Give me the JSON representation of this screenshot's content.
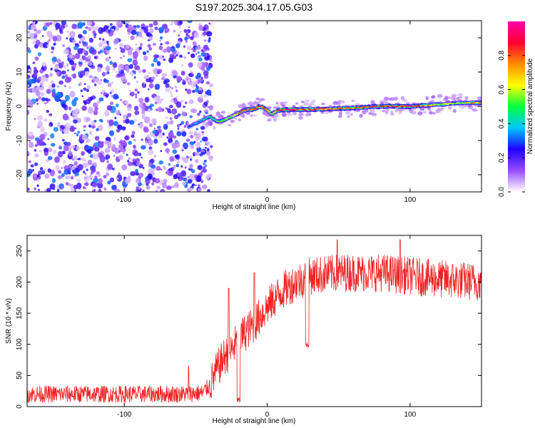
{
  "title": "S197.2025.304.17.05.G03",
  "chart_data": [
    {
      "type": "heatmap",
      "xlabel": "Height of straight line (km)",
      "ylabel": "Frequency (Hz)",
      "xlim": [
        -168,
        150
      ],
      "ylim": [
        -25,
        25
      ],
      "xticks": [
        -100,
        0,
        100
      ],
      "xtick_labels": [
        "-100",
        "0",
        "100"
      ],
      "yticks": [
        -20,
        -10,
        0,
        10,
        20
      ],
      "ytick_labels": [
        "-20",
        "-10",
        "0",
        "10",
        "20"
      ],
      "colorbar": {
        "label": "Normalized spectral amplitude",
        "range": [
          0,
          1
        ],
        "ticks": [
          0,
          0.2,
          0.4,
          0.6,
          0.8
        ],
        "tick_labels": [
          "0.0",
          "0.2",
          "0.4",
          "0.6",
          "0.8"
        ],
        "colors": [
          "#ffffff",
          "#9a4dff",
          "#1f00ff",
          "#00c8ff",
          "#00ff40",
          "#ffff00",
          "#ff8c00",
          "#ff0033",
          "#ff00aa"
        ]
      },
      "noise_region_x": [
        -168,
        -45
      ],
      "ridge": {
        "x": [
          -55,
          -50,
          -45,
          -40,
          -35,
          -30,
          -25,
          -20,
          -15,
          -10,
          -5,
          0,
          3,
          6,
          10,
          20,
          40,
          60,
          80,
          100,
          120,
          135,
          150
        ],
        "freq": [
          -6,
          -5,
          -4,
          -3,
          -4.5,
          -4,
          -3,
          -2,
          -1,
          -1,
          0,
          -1,
          -2.5,
          -1.5,
          -1,
          -1,
          -0.8,
          -0.5,
          0,
          0,
          0.5,
          1,
          1
        ],
        "amplitude": [
          0.3,
          0.35,
          0.4,
          0.45,
          0.5,
          0.55,
          0.6,
          0.7,
          0.8,
          0.9,
          0.85,
          0.7,
          0.6,
          0.7,
          0.85,
          0.9,
          0.75,
          0.8,
          0.85,
          0.9,
          0.6,
          0.55,
          0.8
        ]
      }
    },
    {
      "type": "line",
      "color": "#ee2222",
      "xlabel": "Height of straight line (km)",
      "ylabel": "SNR (10 * v/v)",
      "xlim": [
        -168,
        150
      ],
      "ylim": [
        0,
        275
      ],
      "xticks": [
        -100,
        0,
        100
      ],
      "xtick_labels": [
        "-100",
        "0",
        "100"
      ],
      "yticks": [
        0,
        50,
        100,
        150,
        200,
        250
      ],
      "ytick_labels": [
        "0",
        "50",
        "100",
        "150",
        "200",
        "250"
      ],
      "trend": {
        "x": [
          -168,
          -120,
          -60,
          -45,
          -40,
          -35,
          -30,
          -25,
          -20,
          -10,
          0,
          10,
          20,
          25,
          30,
          50,
          80,
          100,
          120,
          150
        ],
        "y": [
          20,
          20,
          20,
          22,
          35,
          60,
          80,
          90,
          110,
          130,
          160,
          185,
          200,
          205,
          210,
          215,
          215,
          210,
          205,
          200
        ]
      },
      "noise_amplitude": 14,
      "dips": [
        [
          -20,
          5
        ],
        [
          28,
          95
        ]
      ],
      "spikes": [
        [
          -27,
          190
        ],
        [
          -9,
          215
        ],
        [
          49,
          268
        ],
        [
          93,
          268
        ],
        [
          -55,
          65
        ]
      ]
    }
  ]
}
